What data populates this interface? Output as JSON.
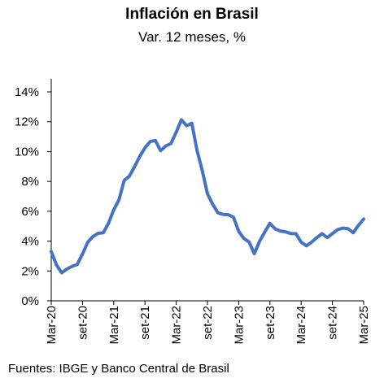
{
  "chart_data": {
    "type": "line",
    "title": "Inflación en Brasil",
    "subtitle": "Var. 12 meses, %",
    "source": "Fuentes: IBGE y Banco Central de Brasil",
    "ylim": [
      0,
      14
    ],
    "yticks": [
      "0%",
      "2%",
      "4%",
      "6%",
      "8%",
      "10%",
      "12%",
      "14%"
    ],
    "xlabels": [
      "Mar-20",
      "set-20",
      "Mar-21",
      "set-21",
      "Mar-22",
      "set-22",
      "Mar-23",
      "set-23",
      "Mar-24",
      "set-24",
      "Mar-25"
    ],
    "grid": false,
    "line_color": "#4472C4",
    "series": [
      {
        "values": [
          3.3,
          2.4,
          1.88,
          2.13,
          2.31,
          2.44,
          3.14,
          3.92,
          4.31,
          4.52,
          4.56,
          5.2,
          6.1,
          6.76,
          8.06,
          8.35,
          8.99,
          9.68,
          10.25,
          10.67,
          10.74,
          10.06,
          10.38,
          10.54,
          11.3,
          12.13,
          11.73,
          11.89,
          10.07,
          8.73,
          7.17,
          6.47,
          5.9,
          5.79,
          5.77,
          5.6,
          4.65,
          4.18,
          3.94,
          3.16,
          3.99,
          4.61,
          5.19,
          4.82,
          4.68,
          4.62,
          4.51,
          4.5,
          3.93,
          3.69,
          3.93,
          4.23,
          4.5,
          4.24,
          4.5,
          4.77,
          4.87,
          4.83,
          4.56,
          5.06,
          5.48
        ]
      }
    ]
  }
}
